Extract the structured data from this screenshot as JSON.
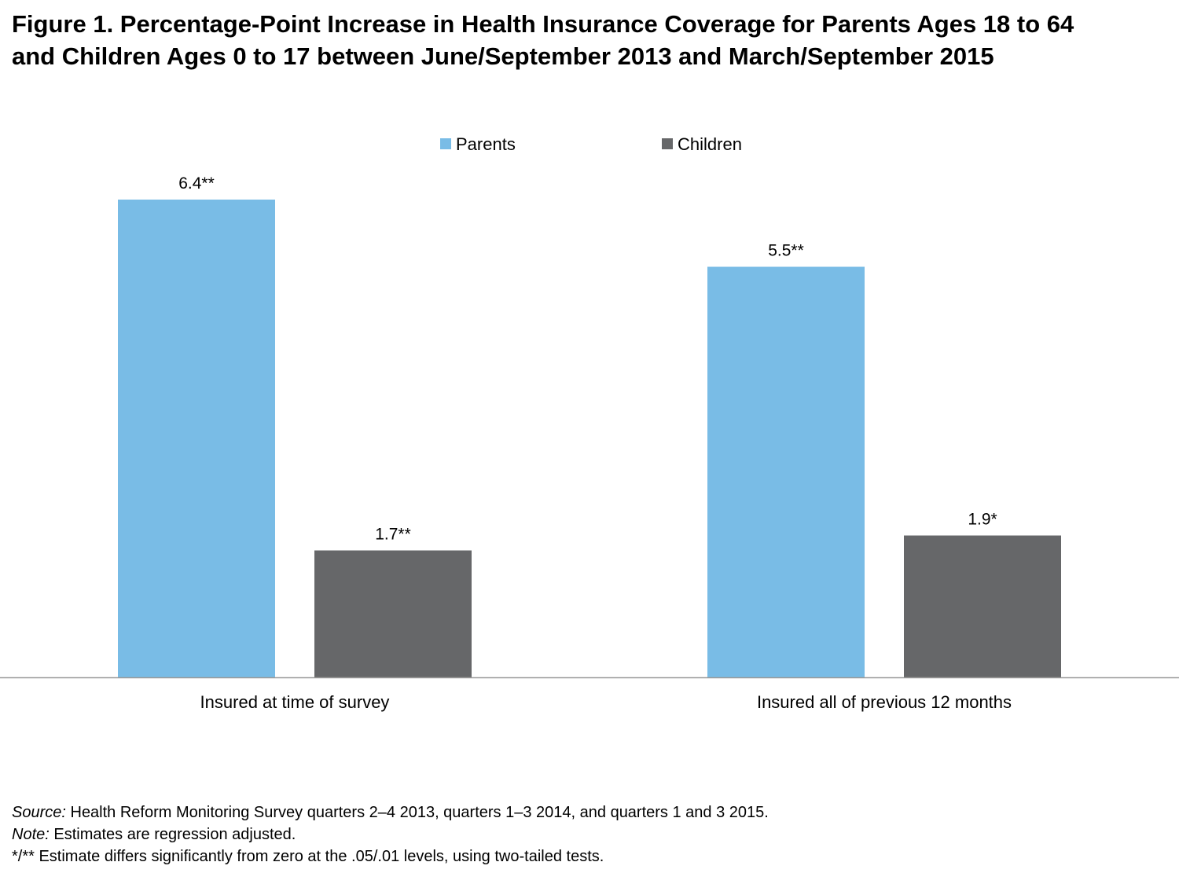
{
  "title": {
    "line1": "Figure 1. Percentage-Point Increase in Health Insurance Coverage for Parents Ages 18 to 64",
    "line2": "and Children Ages 0 to 17 between June/September 2013 and March/September 2015"
  },
  "chart_data": {
    "type": "bar",
    "categories": [
      "Insured at time of survey",
      "Insured all of previous 12 months"
    ],
    "series": [
      {
        "name": "Parents",
        "color": "#79bce6",
        "values": [
          6.4,
          5.5
        ],
        "labels": [
          "6.4**",
          "5.5**"
        ]
      },
      {
        "name": "Children",
        "color": "#666769",
        "values": [
          1.7,
          1.9
        ],
        "labels": [
          "1.7**",
          "1.9*"
        ]
      }
    ],
    "ylim": [
      0,
      6.4
    ],
    "grid": false,
    "legend_position": "top-center",
    "xlabel": "",
    "ylabel": ""
  },
  "notes": {
    "source_label": "Source:",
    "source_text": " Health Reform Monitoring Survey quarters 2–4 2013, quarters 1–3 2014, and quarters 1 and 3 2015.",
    "note_label": "Note:",
    "note_text": " Estimates are regression adjusted.",
    "significance": "*/** Estimate differs significantly from zero at the .05/.01 levels, using two-tailed tests."
  },
  "colors": {
    "axis": "#999999"
  }
}
